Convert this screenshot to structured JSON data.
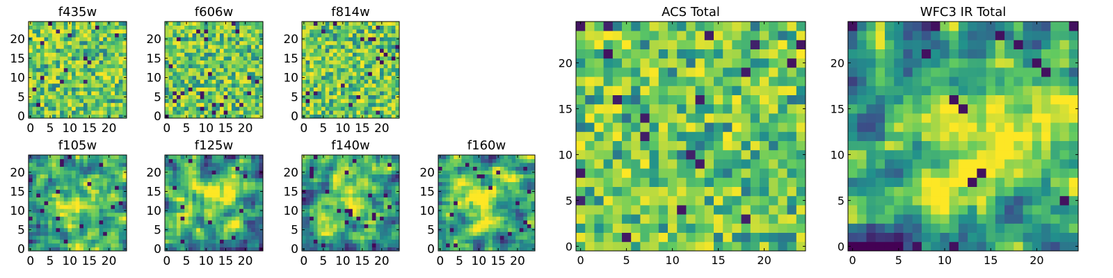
{
  "chart_data": [
    {
      "type": "heatmap",
      "title": "f435w",
      "xticks": [
        "0",
        "5",
        "10",
        "15",
        "20"
      ],
      "yticks": [
        "0",
        "5",
        "10",
        "15",
        "20"
      ],
      "size": 25,
      "xlim": [
        0,
        25
      ],
      "ylim": [
        0,
        25
      ],
      "colormap": "viridis",
      "pattern": "noise",
      "seed": 11
    },
    {
      "type": "heatmap",
      "title": "f606w",
      "xticks": [
        "0",
        "5",
        "10",
        "15",
        "20"
      ],
      "yticks": [
        "0",
        "5",
        "10",
        "15",
        "20"
      ],
      "size": 25,
      "xlim": [
        0,
        25
      ],
      "ylim": [
        0,
        25
      ],
      "colormap": "viridis",
      "pattern": "noise",
      "seed": 23
    },
    {
      "type": "heatmap",
      "title": "f814w",
      "xticks": [
        "0",
        "5",
        "10",
        "15",
        "20"
      ],
      "yticks": [
        "0",
        "5",
        "10",
        "15",
        "20"
      ],
      "size": 25,
      "xlim": [
        0,
        25
      ],
      "ylim": [
        0,
        25
      ],
      "colormap": "viridis",
      "pattern": "noise",
      "seed": 37
    },
    {
      "type": "heatmap",
      "title": "f105w",
      "xticks": [
        "0",
        "5",
        "10",
        "15",
        "20"
      ],
      "yticks": [
        "0",
        "5",
        "10",
        "15",
        "20"
      ],
      "size": 25,
      "xlim": [
        0,
        25
      ],
      "ylim": [
        0,
        25
      ],
      "colormap": "viridis",
      "pattern": "blob",
      "seed": 41
    },
    {
      "type": "heatmap",
      "title": "f125w",
      "xticks": [
        "0",
        "5",
        "10",
        "15",
        "20"
      ],
      "yticks": [
        "0",
        "5",
        "10",
        "15",
        "20"
      ],
      "size": 25,
      "xlim": [
        0,
        25
      ],
      "ylim": [
        0,
        25
      ],
      "colormap": "viridis",
      "pattern": "blob",
      "seed": 53
    },
    {
      "type": "heatmap",
      "title": "f140w",
      "xticks": [
        "0",
        "5",
        "10",
        "15",
        "20"
      ],
      "yticks": [
        "0",
        "5",
        "10",
        "15",
        "20"
      ],
      "size": 25,
      "xlim": [
        0,
        25
      ],
      "ylim": [
        0,
        25
      ],
      "colormap": "viridis",
      "pattern": "blob",
      "seed": 67
    },
    {
      "type": "heatmap",
      "title": "f160w",
      "xticks": [
        "0",
        "5",
        "10",
        "15",
        "20"
      ],
      "yticks": [
        "0",
        "5",
        "10",
        "15",
        "20"
      ],
      "size": 25,
      "xlim": [
        0,
        25
      ],
      "ylim": [
        0,
        25
      ],
      "colormap": "viridis",
      "pattern": "blob",
      "seed": 71
    },
    {
      "type": "heatmap",
      "title": "ACS Total",
      "xticks": [
        "0",
        "5",
        "10",
        "15",
        "20"
      ],
      "yticks": [
        "0",
        "5",
        "10",
        "15",
        "20"
      ],
      "size": 25,
      "xlim": [
        0,
        25
      ],
      "ylim": [
        0,
        25
      ],
      "colormap": "viridis",
      "pattern": "noise",
      "seed": 83
    },
    {
      "type": "heatmap",
      "title": "WFC3 IR Total",
      "xticks": [
        "0",
        "5",
        "10",
        "15",
        "20"
      ],
      "yticks": [
        "0",
        "5",
        "10",
        "15",
        "20"
      ],
      "size": 25,
      "xlim": [
        0,
        25
      ],
      "ylim": [
        0,
        25
      ],
      "colormap": "viridis",
      "pattern": "blob",
      "seed": 97
    }
  ],
  "colors": {
    "cmap": [
      "#440154",
      "#3b528b",
      "#21918c",
      "#5ec962",
      "#fde725"
    ],
    "axes": "#000000",
    "background": "#ffffff"
  }
}
